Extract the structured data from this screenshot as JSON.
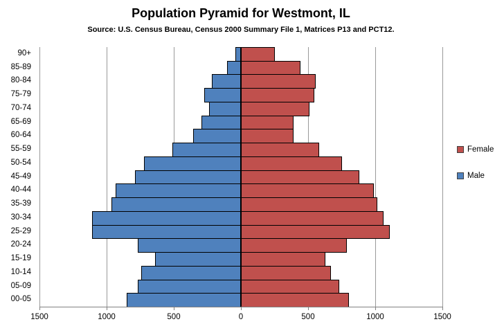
{
  "title": "Population Pyramid for Westmont, IL",
  "subtitle": "Source: U.S. Census Bureau, Census 2000 Summary File 1, Matrices P13 and PCT12.",
  "legend": {
    "position": "right",
    "items": [
      {
        "label": "Female",
        "color": "#C0504D"
      },
      {
        "label": "Male",
        "color": "#4F81BD"
      }
    ]
  },
  "colors": {
    "male_bar": "#4F81BD",
    "female_bar": "#C0504D",
    "bar_border": "#000000",
    "gridline": "#999999",
    "axis": "#808080",
    "text": "#000000",
    "background": "#FFFFFF"
  },
  "chart_data": {
    "type": "bar",
    "subtype": "population-pyramid",
    "title": "Population Pyramid for Westmont, IL",
    "subtitle": "Source: U.S. Census Bureau, Census 2000 Summary File 1, Matrices P13 and PCT12.",
    "grid": true,
    "legend_position": "right",
    "categories_top_to_bottom": [
      "90+",
      "85-89",
      "80-84",
      "75-79",
      "70-74",
      "65-69",
      "60-64",
      "55-59",
      "50-54",
      "45-49",
      "40-44",
      "35-39",
      "30-34",
      "25-29",
      "20-24",
      "15-19",
      "10-14",
      "05-09",
      "00-05"
    ],
    "series": [
      {
        "name": "Male",
        "side": "left",
        "color": "#4F81BD",
        "values": [
          40,
          105,
          215,
          275,
          235,
          295,
          355,
          510,
          720,
          790,
          935,
          965,
          1110,
          1110,
          770,
          640,
          740,
          770,
          850
        ]
      },
      {
        "name": "Female",
        "side": "right",
        "color": "#C0504D",
        "values": [
          255,
          445,
          555,
          545,
          510,
          390,
          390,
          585,
          755,
          880,
          990,
          1015,
          1060,
          1110,
          790,
          630,
          670,
          730,
          805
        ]
      }
    ],
    "x_axis": {
      "min": -1500,
      "max": 1500,
      "tick_interval": 500,
      "tick_labels": [
        "1500",
        "1000",
        "500",
        "0",
        "500",
        "1000",
        "1500"
      ]
    }
  }
}
